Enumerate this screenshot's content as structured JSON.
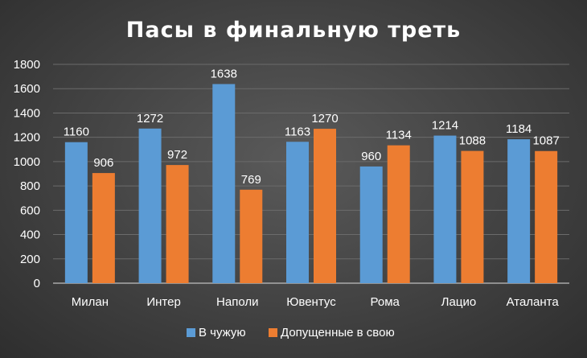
{
  "chart_data": {
    "type": "bar",
    "title": "Пасы в финальную треть",
    "categories": [
      "Милан",
      "Интер",
      "Наполи",
      "Ювентус",
      "Рома",
      "Лацио",
      "Аталанта"
    ],
    "series": [
      {
        "name": "В чужую",
        "color": "#5b9bd5",
        "values": [
          1160,
          1272,
          1638,
          1163,
          960,
          1214,
          1184
        ]
      },
      {
        "name": "Допущенные в свою",
        "color": "#ed7d31",
        "values": [
          906,
          972,
          769,
          1270,
          1134,
          1088,
          1087
        ]
      }
    ],
    "ylim": [
      0,
      1800
    ],
    "yticks": [
      0,
      200,
      400,
      600,
      800,
      1000,
      1200,
      1400,
      1600,
      1800
    ],
    "grid": true,
    "legend": "bottom",
    "data_labels": true
  }
}
